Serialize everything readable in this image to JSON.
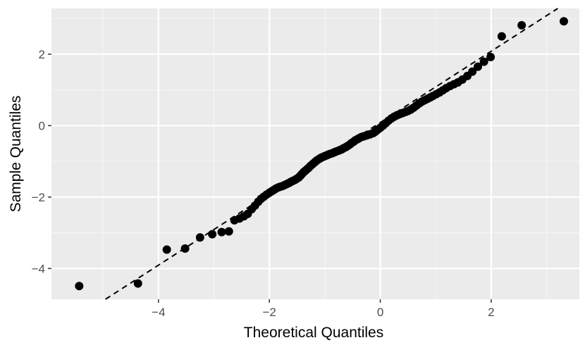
{
  "chart_data": {
    "type": "scatter",
    "title": "",
    "xlabel": "Theoretical Quantiles",
    "ylabel": "Sample Quantiles",
    "xlim": [
      -5.93,
      3.59
    ],
    "ylim": [
      -4.86,
      3.28
    ],
    "x_ticks": [
      {
        "value": -4,
        "label": "−4"
      },
      {
        "value": -2,
        "label": "−2"
      },
      {
        "value": 0,
        "label": "0"
      },
      {
        "value": 2,
        "label": "2"
      }
    ],
    "y_ticks": [
      {
        "value": -4,
        "label": "−4"
      },
      {
        "value": -2,
        "label": "−2"
      },
      {
        "value": 0,
        "label": "0"
      },
      {
        "value": 2,
        "label": "2"
      }
    ],
    "grid": true,
    "colors": {
      "panel": "#ebebeb",
      "grid_major": "#ffffff",
      "grid_minor": "#f5f5f5",
      "points": "#000000",
      "line": "#000000",
      "tick": "#333333"
    },
    "reference_line": {
      "slope": 0.998,
      "intercept": 0.086,
      "style": "dashed"
    },
    "series": [
      {
        "points": [
          [
            -5.43,
            -4.49
          ],
          [
            -4.37,
            -4.42
          ],
          [
            -3.85,
            -3.47
          ],
          [
            -3.52,
            -3.44
          ],
          [
            -3.25,
            -3.13
          ],
          [
            -3.03,
            -3.04
          ],
          [
            -2.86,
            -2.98
          ],
          [
            -2.73,
            -2.96
          ],
          [
            -2.63,
            -2.65
          ],
          [
            -2.54,
            -2.6
          ],
          [
            -2.46,
            -2.54
          ],
          [
            -2.39,
            -2.47
          ],
          [
            -2.32,
            -2.34
          ],
          [
            -2.26,
            -2.24
          ],
          [
            -2.2,
            -2.13
          ],
          [
            -2.15,
            -2.05
          ],
          [
            -2.1,
            -1.99
          ],
          [
            -2.05,
            -1.93
          ],
          [
            -2.0,
            -1.88
          ],
          [
            -1.96,
            -1.84
          ],
          [
            -1.92,
            -1.8
          ],
          [
            -1.88,
            -1.76
          ],
          [
            -1.84,
            -1.73
          ],
          [
            -1.8,
            -1.71
          ],
          [
            -1.76,
            -1.69
          ],
          [
            -1.72,
            -1.66
          ],
          [
            -1.68,
            -1.63
          ],
          [
            -1.64,
            -1.6
          ],
          [
            -1.61,
            -1.57
          ],
          [
            -1.58,
            -1.55
          ],
          [
            -1.54,
            -1.52
          ],
          [
            -1.51,
            -1.49
          ],
          [
            -1.47,
            -1.45
          ],
          [
            -1.44,
            -1.4
          ],
          [
            -1.41,
            -1.35
          ],
          [
            -1.38,
            -1.3
          ],
          [
            -1.35,
            -1.26
          ],
          [
            -1.32,
            -1.22
          ],
          [
            -1.29,
            -1.18
          ],
          [
            -1.26,
            -1.13
          ],
          [
            -1.23,
            -1.09
          ],
          [
            -1.2,
            -1.05
          ],
          [
            -1.17,
            -1.01
          ],
          [
            -1.14,
            -0.97
          ],
          [
            -1.1,
            -0.93
          ],
          [
            -1.07,
            -0.9
          ],
          [
            -1.04,
            -0.88
          ],
          [
            -1.01,
            -0.86
          ],
          [
            -0.98,
            -0.84
          ],
          [
            -0.95,
            -0.82
          ],
          [
            -0.92,
            -0.8
          ],
          [
            -0.88,
            -0.78
          ],
          [
            -0.85,
            -0.76
          ],
          [
            -0.82,
            -0.74
          ],
          [
            -0.79,
            -0.72
          ],
          [
            -0.75,
            -0.7
          ],
          [
            -0.72,
            -0.68
          ],
          [
            -0.69,
            -0.66
          ],
          [
            -0.66,
            -0.63
          ],
          [
            -0.62,
            -0.6
          ],
          [
            -0.59,
            -0.57
          ],
          [
            -0.55,
            -0.53
          ],
          [
            -0.52,
            -0.49
          ],
          [
            -0.48,
            -0.45
          ],
          [
            -0.45,
            -0.41
          ],
          [
            -0.41,
            -0.38
          ],
          [
            -0.38,
            -0.35
          ],
          [
            -0.34,
            -0.32
          ],
          [
            -0.3,
            -0.3
          ],
          [
            -0.26,
            -0.28
          ],
          [
            -0.22,
            -0.26
          ],
          [
            -0.18,
            -0.24
          ],
          [
            -0.13,
            -0.21
          ],
          [
            -0.09,
            -0.17
          ],
          [
            -0.05,
            -0.12
          ],
          [
            0.0,
            -0.06
          ],
          [
            0.05,
            0.0
          ],
          [
            0.1,
            0.07
          ],
          [
            0.15,
            0.14
          ],
          [
            0.2,
            0.2
          ],
          [
            0.25,
            0.25
          ],
          [
            0.3,
            0.29
          ],
          [
            0.35,
            0.32
          ],
          [
            0.4,
            0.35
          ],
          [
            0.45,
            0.38
          ],
          [
            0.5,
            0.41
          ],
          [
            0.55,
            0.45
          ],
          [
            0.6,
            0.5
          ],
          [
            0.65,
            0.56
          ],
          [
            0.7,
            0.62
          ],
          [
            0.75,
            0.67
          ],
          [
            0.8,
            0.71
          ],
          [
            0.85,
            0.75
          ],
          [
            0.9,
            0.79
          ],
          [
            0.95,
            0.83
          ],
          [
            1.01,
            0.88
          ],
          [
            1.07,
            0.93
          ],
          [
            1.13,
            0.99
          ],
          [
            1.19,
            1.05
          ],
          [
            1.26,
            1.11
          ],
          [
            1.33,
            1.16
          ],
          [
            1.4,
            1.21
          ],
          [
            1.48,
            1.29
          ],
          [
            1.57,
            1.39
          ],
          [
            1.66,
            1.51
          ],
          [
            1.76,
            1.65
          ],
          [
            1.87,
            1.79
          ],
          [
            1.99,
            1.92
          ],
          [
            2.19,
            2.5
          ],
          [
            2.55,
            2.81
          ],
          [
            3.31,
            2.92
          ]
        ]
      }
    ]
  }
}
